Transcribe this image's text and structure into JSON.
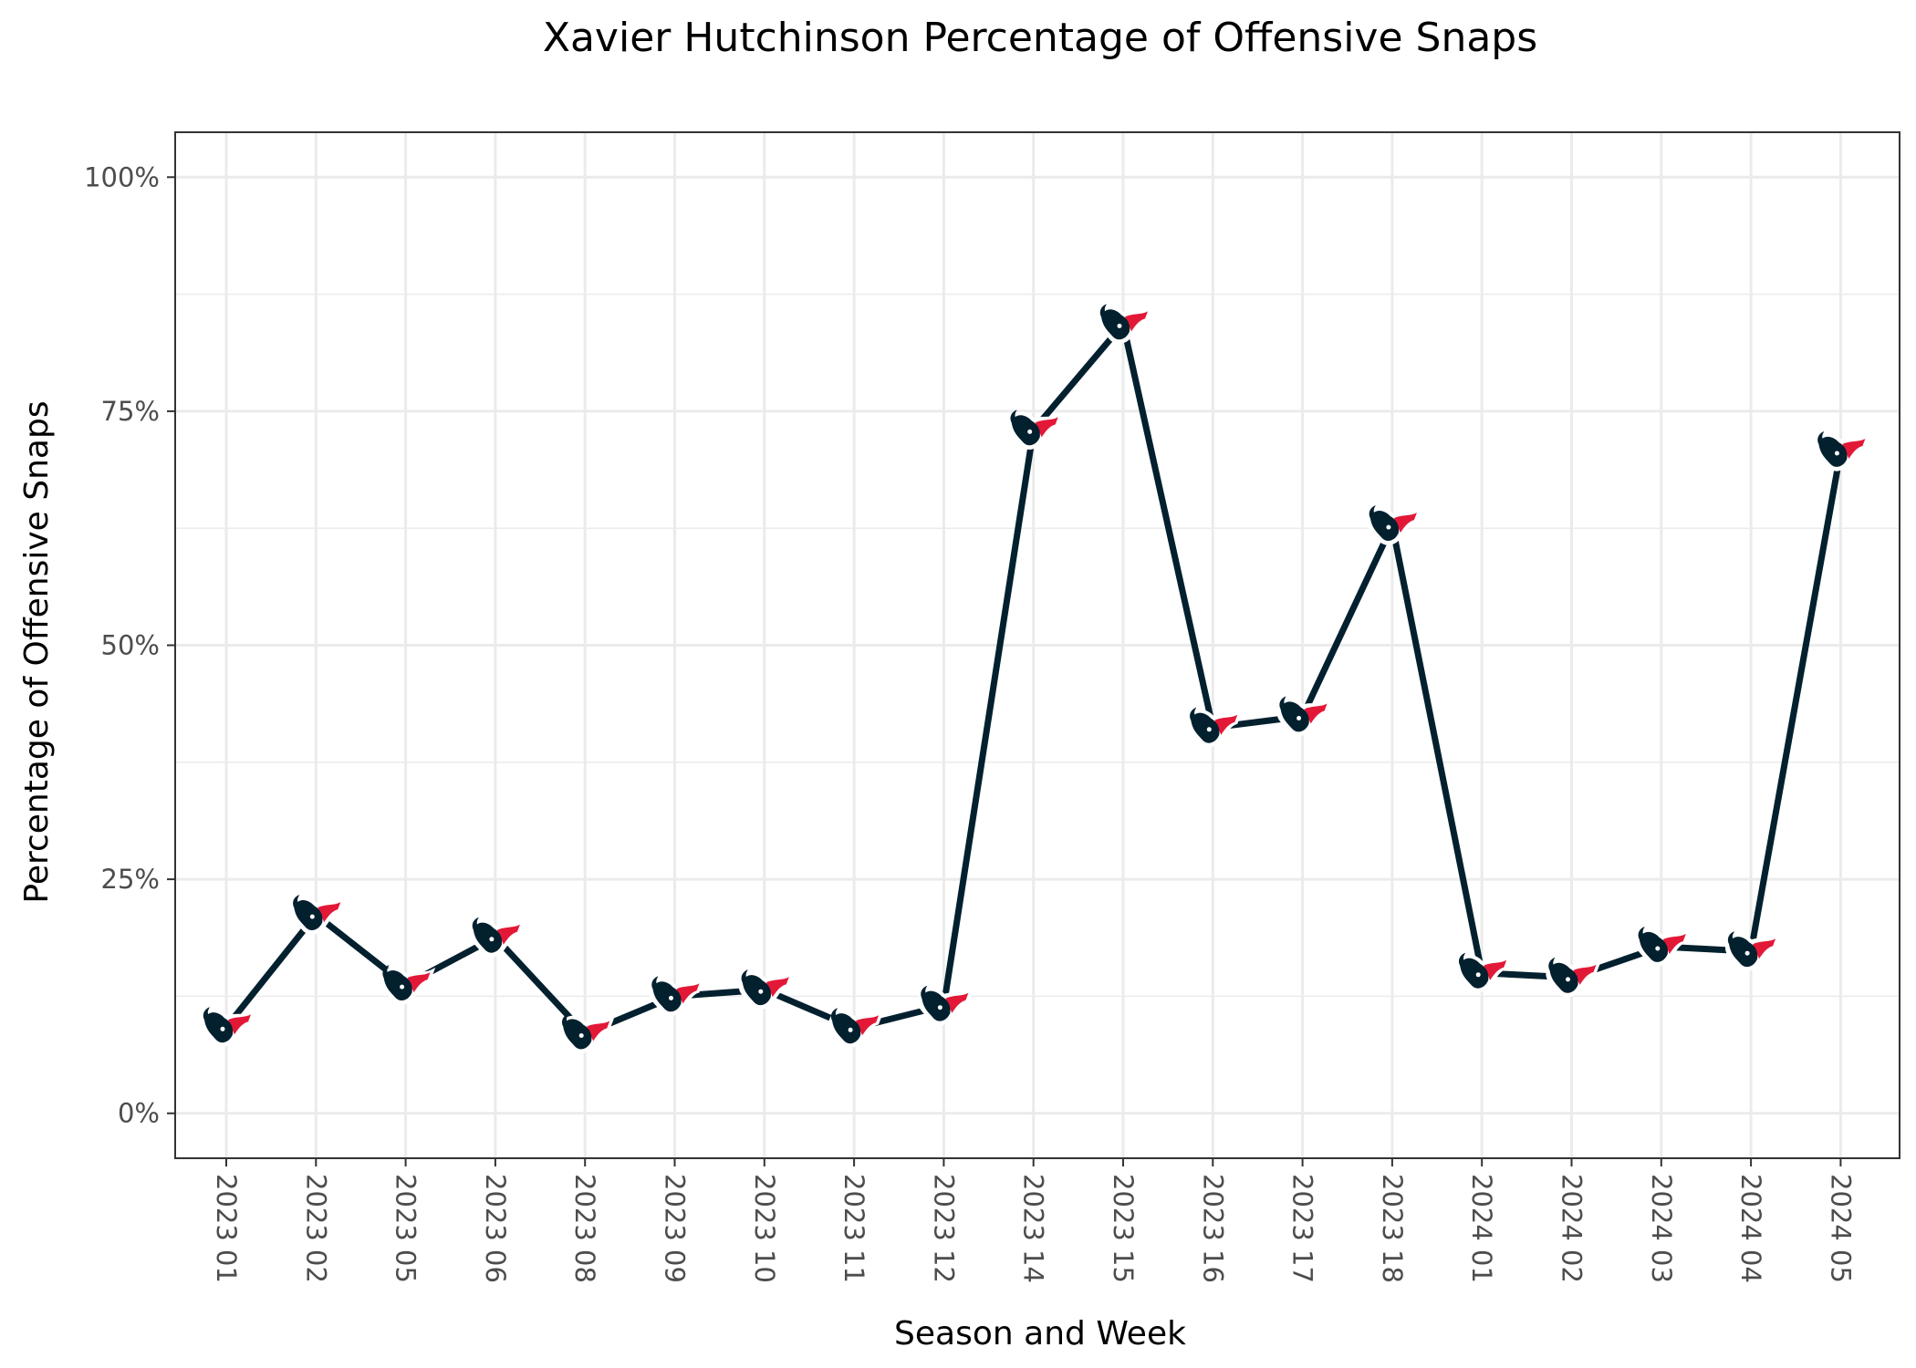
{
  "chart_data": {
    "type": "line",
    "title": "Xavier Hutchinson Percentage of Offensive Snaps",
    "xlabel": "Season and Week",
    "ylabel": "Percentage of Offensive Snaps",
    "categories": [
      "2023 01",
      "2023 02",
      "2023 05",
      "2023 06",
      "2023 08",
      "2023 09",
      "2023 10",
      "2023 11",
      "2023 12",
      "2023 14",
      "2023 15",
      "2023 16",
      "2023 17",
      "2023 18",
      "2024 01",
      "2024 02",
      "2024 03",
      "2024 04",
      "2024 05"
    ],
    "series": [
      {
        "values": [
          0.092,
          0.212,
          0.137,
          0.188,
          0.085,
          0.125,
          0.132,
          0.091,
          0.115,
          0.73,
          0.843,
          0.412,
          0.424,
          0.628,
          0.15,
          0.145,
          0.178,
          0.173,
          0.707
        ]
      }
    ],
    "ylim": [
      -0.048,
      1.048
    ],
    "yticks": [
      0,
      0.25,
      0.5,
      0.75,
      1.0
    ],
    "ytick_labels": [
      "0%",
      "25%",
      "50%",
      "75%",
      "100%"
    ],
    "grid": true,
    "legend": "none",
    "colors": {
      "line": "#03202f",
      "marker_primary": "#03202f",
      "marker_accent": "#e31837",
      "grid": "#ebebeb",
      "panel_border": "#333333",
      "tick_text": "#4d4d4d"
    },
    "marker_icon": "houston-texans-logo-icon"
  }
}
